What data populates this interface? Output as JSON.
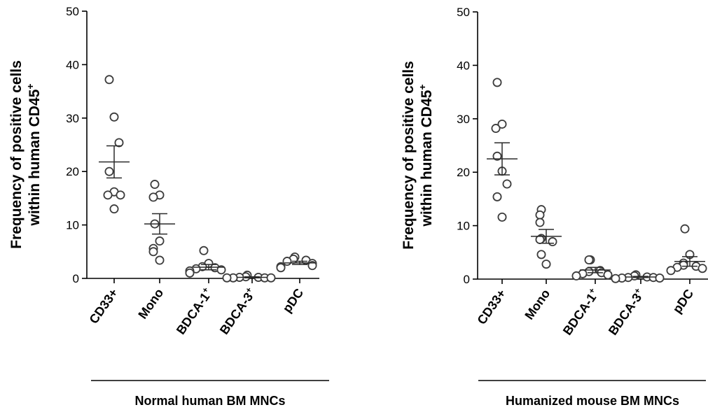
{
  "chart_data": [
    {
      "type": "scatter",
      "ylabel_line1": "Frequency of positive cells",
      "ylabel_line2": "within human CD45",
      "ylabel_sup": "+",
      "group_label": "Normal human BM MNCs",
      "ylim": [
        0,
        50
      ],
      "yticks": [
        "0",
        "10",
        "20",
        "30",
        "40",
        "50"
      ],
      "categories": [
        {
          "base": "CD33+",
          "sup": ""
        },
        {
          "base": "Mono",
          "sup": ""
        },
        {
          "base": "BDCA-1",
          "sup": "+"
        },
        {
          "base": "BDCA-3",
          "sup": "+"
        },
        {
          "base": "pDC",
          "sup": ""
        }
      ],
      "points": [
        [
          37.2,
          30.2,
          25.4,
          20.0,
          16.2,
          15.6,
          15.6,
          13.0
        ],
        [
          17.6,
          15.6,
          15.2,
          10.2,
          7.0,
          5.6,
          5.0,
          3.4
        ],
        [
          5.2,
          2.8,
          2.2,
          2.0,
          1.8,
          1.6,
          1.4,
          1.0
        ],
        [
          0.6,
          0.3,
          0.2,
          0.2,
          0.1,
          0.1,
          0.1,
          0.1
        ],
        [
          4.0,
          3.6,
          3.4,
          3.2,
          2.8,
          2.4,
          2.2,
          2.0
        ]
      ],
      "means": [
        21.8,
        10.2,
        2.1,
        0.2,
        2.9
      ],
      "sem": [
        3.0,
        1.9,
        0.5,
        0.1,
        0.3
      ]
    },
    {
      "type": "scatter",
      "ylabel_line1": "Frequency of positive cells",
      "ylabel_line2": "within human CD45",
      "ylabel_sup": "+",
      "group_label": "Humanized mouse BM MNCs",
      "ylim": [
        0,
        50
      ],
      "yticks": [
        "0",
        "10",
        "20",
        "30",
        "40",
        "50"
      ],
      "categories": [
        {
          "base": "CD33+",
          "sup": ""
        },
        {
          "base": "Mono",
          "sup": ""
        },
        {
          "base": "BDCA-1",
          "sup": "+"
        },
        {
          "base": "BDCA-3",
          "sup": "+"
        },
        {
          "base": "pDC",
          "sup": ""
        }
      ],
      "points": [
        [
          36.8,
          29.0,
          28.2,
          23.0,
          20.2,
          17.8,
          15.4,
          11.6
        ],
        [
          13.0,
          12.0,
          10.6,
          7.6,
          7.4,
          7.0,
          4.6,
          2.8
        ],
        [
          3.6,
          3.6,
          1.6,
          1.4,
          1.2,
          1.0,
          0.8,
          0.6
        ],
        [
          0.8,
          0.6,
          0.4,
          0.3,
          0.3,
          0.2,
          0.2,
          0.1
        ],
        [
          9.4,
          4.6,
          3.0,
          2.6,
          2.4,
          2.2,
          2.0,
          1.6
        ]
      ],
      "means": [
        22.5,
        8.0,
        1.7,
        0.4,
        3.3
      ],
      "sem": [
        3.0,
        1.3,
        0.5,
        0.1,
        0.9
      ]
    }
  ]
}
